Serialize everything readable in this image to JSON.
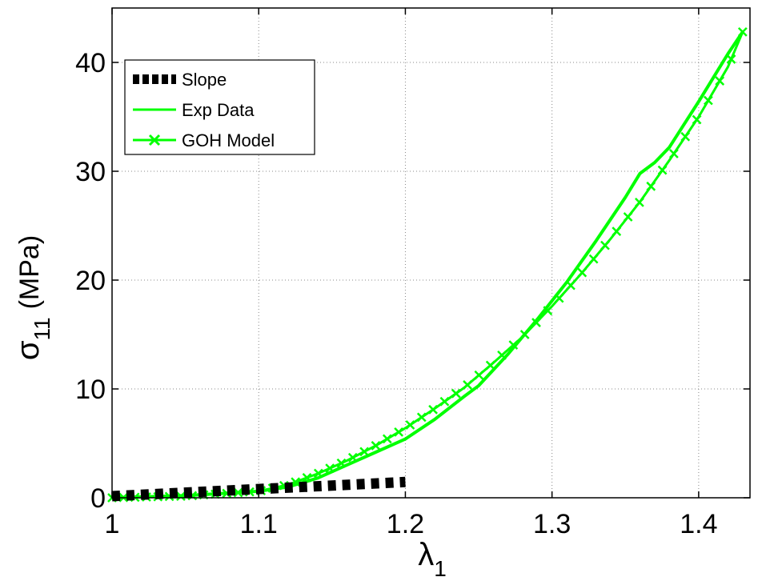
{
  "chart_data": {
    "type": "line",
    "xlabel": {
      "symbol": "λ",
      "subscript": "1"
    },
    "ylabel": {
      "symbol": "σ",
      "subscript": "11",
      "unit": "(MPa)"
    },
    "xlim": [
      1.0,
      1.435
    ],
    "ylim": [
      0,
      45
    ],
    "xticks": [
      "1",
      "1.1",
      "1.2",
      "1.3",
      "1.4"
    ],
    "xtick_values": [
      1.0,
      1.1,
      1.2,
      1.3,
      1.4
    ],
    "yticks": [
      "0",
      "10",
      "20",
      "30",
      "40"
    ],
    "ytick_values": [
      0,
      10,
      20,
      30,
      40
    ],
    "grid": true,
    "legend_position": "top-left",
    "series": [
      {
        "name": "Slope",
        "style": "thick-dashed",
        "color": "#000000",
        "x": [
          1.0,
          1.2
        ],
        "y": [
          0.15,
          1.45
        ]
      },
      {
        "name": "Exp Data",
        "style": "solid",
        "color": "#00ff00",
        "x": [
          1.0,
          1.05,
          1.1,
          1.12,
          1.14,
          1.16,
          1.18,
          1.2,
          1.22,
          1.24,
          1.25,
          1.27,
          1.29,
          1.31,
          1.33,
          1.35,
          1.36,
          1.37,
          1.38,
          1.4,
          1.42,
          1.43
        ],
        "y": [
          0.0,
          0.2,
          0.6,
          1.0,
          1.8,
          3.0,
          4.2,
          5.4,
          7.2,
          9.3,
          10.3,
          13.2,
          16.4,
          19.8,
          23.6,
          27.6,
          29.8,
          30.8,
          32.2,
          36.4,
          40.8,
          42.8
        ]
      },
      {
        "name": "GOH Model",
        "style": "solid-x-markers",
        "color": "#00ff00",
        "x": [
          1.0,
          1.05,
          1.1,
          1.12,
          1.14,
          1.16,
          1.18,
          1.2,
          1.22,
          1.24,
          1.26,
          1.28,
          1.3,
          1.32,
          1.34,
          1.36,
          1.38,
          1.4,
          1.42,
          1.43
        ],
        "y": [
          0.0,
          0.15,
          0.6,
          1.2,
          2.2,
          3.4,
          4.8,
          6.4,
          8.2,
          10.1,
          12.4,
          14.8,
          17.6,
          20.6,
          23.8,
          27.2,
          31.0,
          35.0,
          39.6,
          42.8
        ]
      }
    ]
  }
}
